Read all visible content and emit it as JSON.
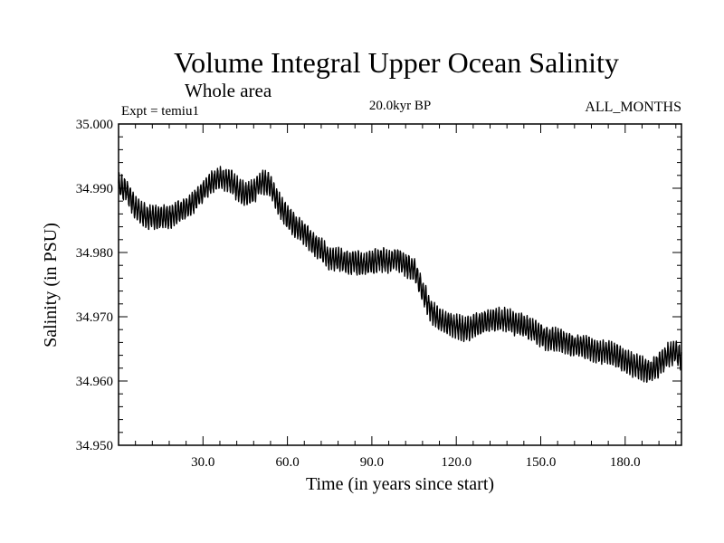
{
  "chart_data": {
    "type": "line",
    "title": "Volume Integral Upper Ocean Salinity",
    "subtitle": "Whole area",
    "experiment_label": "Expt = temiu1",
    "period_label": "20.0kyr BP",
    "months_label": "ALL_MONTHS",
    "xlabel": "Time (in years since start)",
    "ylabel": "Salinity (in PSU)",
    "xlim": [
      0,
      200
    ],
    "ylim": [
      34.95,
      35.0
    ],
    "x_ticks": [
      30,
      60,
      90,
      120,
      150,
      180
    ],
    "x_tick_labels": [
      "30.0",
      "60.0",
      "90.0",
      "120.0",
      "150.0",
      "180.0"
    ],
    "y_ticks": [
      34.95,
      34.96,
      34.97,
      34.98,
      34.99,
      35.0
    ],
    "y_tick_labels": [
      "34.950",
      "34.960",
      "34.970",
      "34.980",
      "34.990",
      "35.000"
    ],
    "grid": false,
    "monthly_amplitude_psu": 0.0016,
    "series": [
      {
        "name": "Salinity",
        "color": "#000000",
        "x": [
          0,
          3,
          6,
          10,
          14,
          18,
          22,
          26,
          30,
          33,
          36,
          39,
          42,
          45,
          48,
          51,
          54,
          57,
          60,
          63,
          66,
          69,
          72,
          75,
          78,
          81,
          84,
          87,
          90,
          93,
          96,
          99,
          102,
          105,
          108,
          111,
          114,
          117,
          120,
          123,
          126,
          129,
          132,
          135,
          138,
          141,
          144,
          147,
          150,
          153,
          156,
          159,
          162,
          165,
          168,
          171,
          174,
          177,
          180,
          183,
          186,
          189,
          192,
          195,
          198,
          200
        ],
        "values": [
          34.9905,
          34.9895,
          34.987,
          34.9855,
          34.9855,
          34.9855,
          34.9865,
          34.9875,
          34.9895,
          34.991,
          34.9915,
          34.9915,
          34.99,
          34.989,
          34.9895,
          34.991,
          34.9905,
          34.9875,
          34.9855,
          34.984,
          34.983,
          34.9815,
          34.9805,
          34.979,
          34.979,
          34.9785,
          34.9785,
          34.978,
          34.9785,
          34.979,
          34.9785,
          34.979,
          34.978,
          34.9775,
          34.974,
          34.971,
          34.9695,
          34.969,
          34.9685,
          34.968,
          34.9685,
          34.969,
          34.9695,
          34.9695,
          34.9695,
          34.969,
          34.9685,
          34.968,
          34.967,
          34.9665,
          34.9665,
          34.966,
          34.9655,
          34.9655,
          34.965,
          34.9645,
          34.9645,
          34.964,
          34.963,
          34.9625,
          34.962,
          34.9615,
          34.9625,
          34.964,
          34.9645,
          34.9635
        ]
      }
    ]
  }
}
